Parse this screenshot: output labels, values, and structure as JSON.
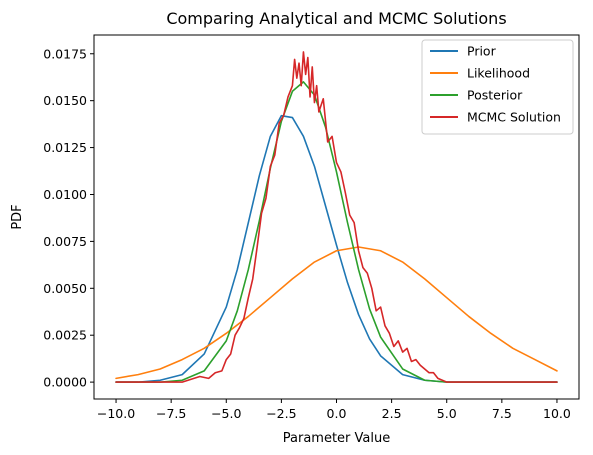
{
  "chart_data": {
    "type": "line",
    "title": "Comparing Analytical and MCMC Solutions",
    "xlabel": "Parameter Value",
    "ylabel": "PDF",
    "xlim": [
      -11,
      11
    ],
    "ylim": [
      -0.0009,
      0.0185
    ],
    "grid": false,
    "legend_position": "top-right",
    "x_ticks": [
      -10,
      -7.5,
      -5,
      -2.5,
      0,
      2.5,
      5,
      7.5,
      10
    ],
    "x_tick_labels": [
      "−10.0",
      "−7.5",
      "−5.0",
      "−2.5",
      "0.0",
      "2.5",
      "5.0",
      "7.5",
      "10.0"
    ],
    "y_ticks": [
      0,
      0.0025,
      0.005,
      0.0075,
      0.01,
      0.0125,
      0.015,
      0.0175
    ],
    "y_tick_labels": [
      "0.0000",
      "0.0025",
      "0.0050",
      "0.0075",
      "0.0100",
      "0.0125",
      "0.0150",
      "0.0175"
    ],
    "series": [
      {
        "name": "Prior",
        "color": "#1f77b4",
        "x": [
          -10,
          -9,
          -8,
          -7,
          -6,
          -5,
          -4.5,
          -4,
          -3.5,
          -3,
          -2.5,
          -2,
          -1.5,
          -1,
          -0.5,
          0,
          0.5,
          1,
          1.5,
          2,
          3,
          4,
          5,
          6,
          8,
          10
        ],
        "y": [
          0,
          0.0,
          0.0001,
          0.0004,
          0.0015,
          0.004,
          0.006,
          0.0085,
          0.011,
          0.0131,
          0.0142,
          0.0141,
          0.0131,
          0.0115,
          0.0094,
          0.0073,
          0.0053,
          0.0036,
          0.0023,
          0.0014,
          0.0004,
          0.0001,
          0.0,
          0.0,
          0.0,
          0.0
        ]
      },
      {
        "name": "Likelihood",
        "color": "#ff7f0e",
        "x": [
          -10,
          -9,
          -8,
          -7,
          -6,
          -5,
          -4,
          -3,
          -2,
          -1,
          0,
          1,
          2,
          3,
          4,
          5,
          6,
          7,
          8,
          9,
          10
        ],
        "y": [
          0.0002,
          0.0004,
          0.0007,
          0.0012,
          0.0018,
          0.0026,
          0.0035,
          0.0045,
          0.0055,
          0.0064,
          0.007,
          0.0072,
          0.007,
          0.0064,
          0.0055,
          0.0045,
          0.0035,
          0.0026,
          0.0018,
          0.0012,
          0.0006
        ]
      },
      {
        "name": "Posterior",
        "color": "#2ca02c",
        "x": [
          -10,
          -8,
          -7,
          -6,
          -5,
          -4.5,
          -4,
          -3.5,
          -3,
          -2.5,
          -2,
          -1.5,
          -1,
          -0.5,
          0,
          0.5,
          1,
          1.5,
          2,
          3,
          4,
          5,
          6,
          8,
          10
        ],
        "y": [
          0,
          0.0,
          0.0001,
          0.0006,
          0.0022,
          0.0038,
          0.006,
          0.0086,
          0.0114,
          0.0139,
          0.0155,
          0.016,
          0.0153,
          0.0136,
          0.0112,
          0.0085,
          0.006,
          0.0039,
          0.0024,
          0.0007,
          0.0001,
          0.0,
          0.0,
          0.0,
          0.0
        ]
      },
      {
        "name": "MCMC Solution",
        "color": "#d62728",
        "x": [
          -10,
          -7,
          -6.2,
          -5.8,
          -5.5,
          -5.2,
          -5.0,
          -4.8,
          -4.6,
          -4.4,
          -4.2,
          -4.0,
          -3.8,
          -3.6,
          -3.4,
          -3.2,
          -3.0,
          -2.8,
          -2.6,
          -2.4,
          -2.2,
          -2.0,
          -1.9,
          -1.8,
          -1.7,
          -1.6,
          -1.5,
          -1.4,
          -1.3,
          -1.2,
          -1.1,
          -1.0,
          -0.9,
          -0.8,
          -0.6,
          -0.4,
          -0.2,
          0.0,
          0.2,
          0.4,
          0.6,
          0.8,
          1.0,
          1.2,
          1.4,
          1.6,
          1.8,
          2.0,
          2.2,
          2.4,
          2.6,
          2.8,
          3.0,
          3.2,
          3.4,
          3.6,
          3.8,
          4.0,
          4.2,
          4.4,
          4.6,
          5.0,
          6.0,
          10.0
        ],
        "y": [
          0,
          0,
          0.0003,
          0.0002,
          0.0005,
          0.0006,
          0.0012,
          0.0015,
          0.0025,
          0.0029,
          0.0034,
          0.0045,
          0.0055,
          0.0072,
          0.009,
          0.0098,
          0.0115,
          0.0121,
          0.0138,
          0.0142,
          0.0152,
          0.0158,
          0.0172,
          0.0162,
          0.017,
          0.0158,
          0.0176,
          0.0164,
          0.0173,
          0.0152,
          0.0168,
          0.0149,
          0.0158,
          0.0144,
          0.0151,
          0.0128,
          0.0131,
          0.0117,
          0.0112,
          0.0101,
          0.0089,
          0.0085,
          0.007,
          0.0061,
          0.0058,
          0.005,
          0.0038,
          0.004,
          0.003,
          0.0026,
          0.0019,
          0.0022,
          0.0016,
          0.0018,
          0.0011,
          0.0012,
          0.0009,
          0.0007,
          0.0005,
          0.0005,
          0.0002,
          0.0,
          0.0,
          0.0
        ]
      }
    ]
  }
}
